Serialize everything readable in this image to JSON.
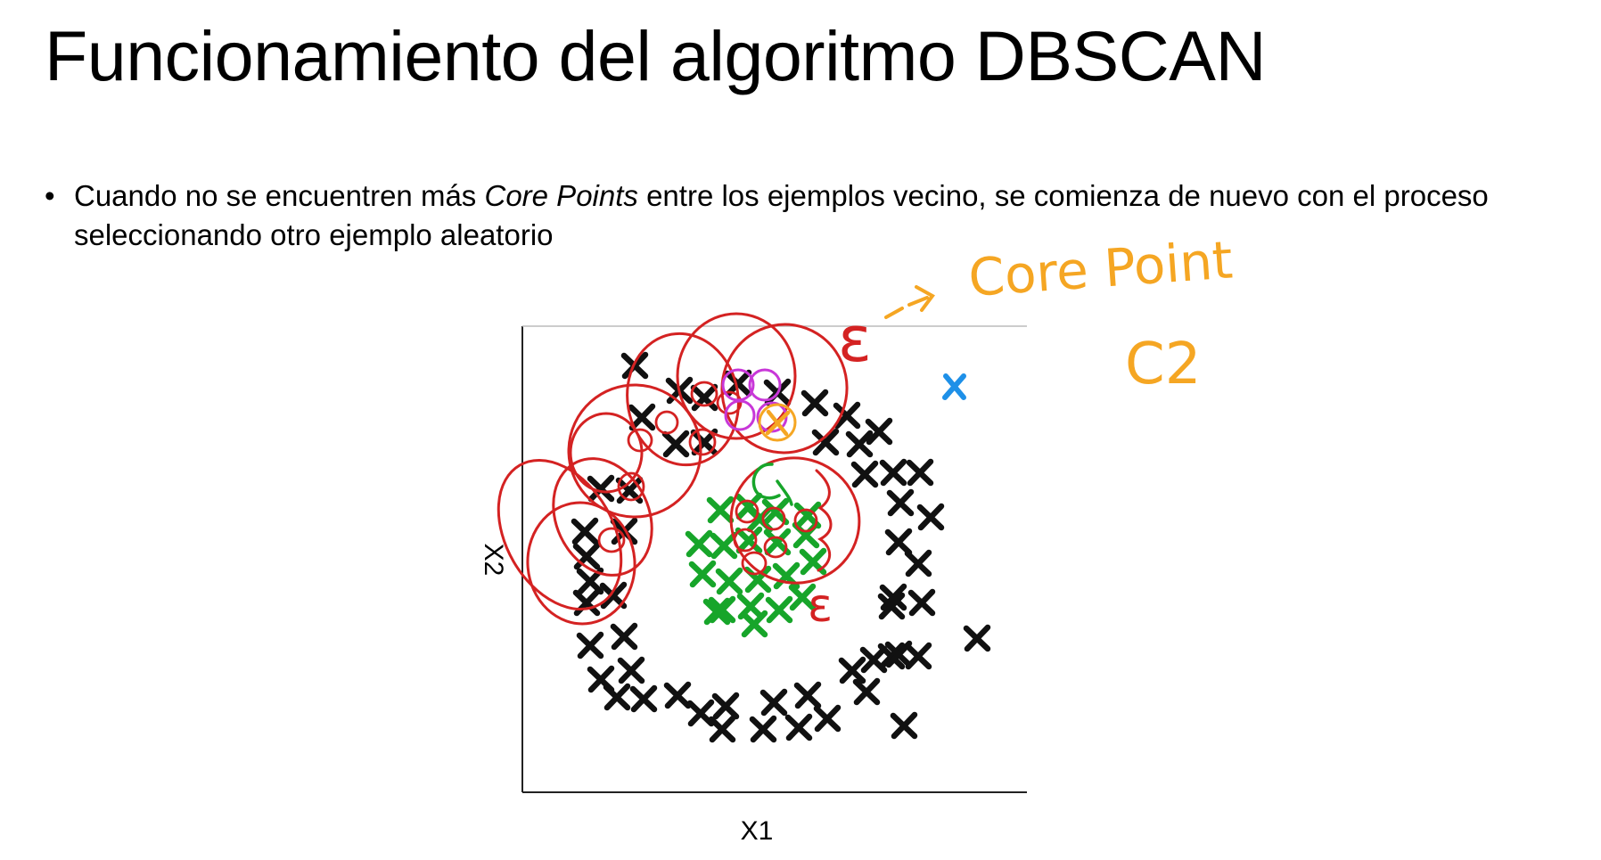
{
  "slide": {
    "title": "Funcionamiento del algoritmo DBSCAN",
    "bullet": {
      "marker": "•",
      "text_before": "Cuando no se encuentren más ",
      "text_emphasis": "Core Points",
      "text_after": " entre los ejemplos vecino, se comienza de nuevo con el proceso seleccionando otro ejemplo aleatorio"
    }
  },
  "diagram": {
    "x_axis_label": "X1",
    "y_axis_label": "X2",
    "annotations": {
      "epsilon_top": "ε",
      "epsilon_right": "ε",
      "core_point_label": "Core Point",
      "cluster_label": "C2",
      "cluster_marker": "C1"
    },
    "colors": {
      "points": "#111111",
      "cluster_c1": "#17a52a",
      "epsilon_circles": "#d42222",
      "core_points": "#c837d8",
      "current_core_point": "#f5a623",
      "noise_point": "#1e90e8",
      "annotation": "#f5a623"
    }
  }
}
